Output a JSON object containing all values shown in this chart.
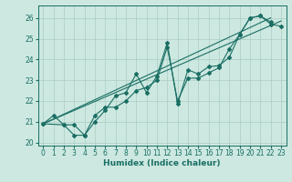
{
  "xlabel": "Humidex (Indice chaleur)",
  "bg_color": "#cce8e0",
  "grid_color": "#aaccc4",
  "line_color": "#1a6e64",
  "xlim": [
    -0.5,
    23.5
  ],
  "ylim": [
    19.85,
    26.6
  ],
  "yticks": [
    20,
    21,
    22,
    23,
    24,
    25,
    26
  ],
  "xticks": [
    0,
    1,
    2,
    3,
    4,
    5,
    6,
    7,
    8,
    9,
    10,
    11,
    12,
    13,
    14,
    15,
    16,
    17,
    18,
    19,
    20,
    21,
    22,
    23
  ],
  "series": [
    {
      "x": [
        0,
        1,
        2,
        3,
        4,
        5,
        6,
        7,
        8,
        9,
        10,
        11,
        12,
        13,
        14,
        15,
        16,
        17,
        18,
        19,
        20,
        21,
        22
      ],
      "y": [
        20.9,
        21.3,
        20.85,
        20.35,
        20.35,
        21.0,
        21.55,
        22.25,
        22.4,
        23.3,
        22.4,
        23.2,
        24.8,
        21.85,
        23.5,
        23.3,
        23.65,
        23.7,
        24.1,
        25.2,
        26.0,
        26.1,
        25.8
      ]
    },
    {
      "x": [
        0,
        2,
        3,
        4,
        5,
        6,
        7,
        8,
        9,
        10,
        11,
        12,
        13,
        14,
        15,
        16,
        17,
        18,
        19,
        20,
        21,
        22,
        23
      ],
      "y": [
        20.9,
        20.85,
        20.85,
        20.35,
        21.3,
        21.7,
        21.7,
        22.0,
        22.5,
        22.65,
        23.0,
        24.6,
        22.0,
        23.1,
        23.1,
        23.35,
        23.6,
        24.5,
        25.2,
        26.0,
        26.1,
        25.7,
        25.6
      ]
    },
    {
      "x": [
        0,
        23
      ],
      "y": [
        20.9,
        25.85
      ]
    },
    {
      "x": [
        0,
        22
      ],
      "y": [
        20.9,
        26.0
      ]
    }
  ]
}
